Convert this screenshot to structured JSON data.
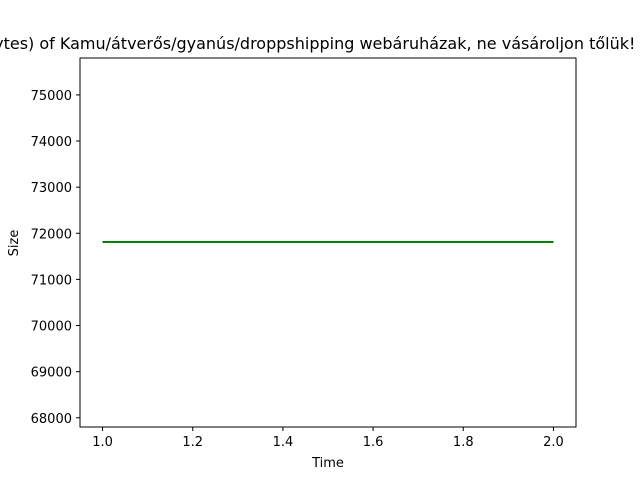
{
  "chart_data": {
    "type": "line",
    "title": "Size (in bytes) of Kamu/átverős/gyanús/droppshipping webáruházak, ne vásároljon tőlük! - Pollution",
    "xlabel": "Time",
    "ylabel": "Size",
    "xlim": [
      0.95,
      2.05
    ],
    "ylim": [
      67800,
      75800
    ],
    "x_ticks": [
      1.0,
      1.2,
      1.4,
      1.6,
      1.8,
      2.0
    ],
    "x_tick_labels": [
      "1.0",
      "1.2",
      "1.4",
      "1.6",
      "1.8",
      "2.0"
    ],
    "y_ticks": [
      68000,
      69000,
      70000,
      71000,
      72000,
      73000,
      74000,
      75000
    ],
    "y_tick_labels": [
      "68000",
      "69000",
      "70000",
      "71000",
      "72000",
      "73000",
      "74000",
      "75000"
    ],
    "grid": false,
    "series": [
      {
        "color": "#008000",
        "x": [
          1,
          2
        ],
        "y": [
          71810,
          71810
        ]
      }
    ]
  }
}
